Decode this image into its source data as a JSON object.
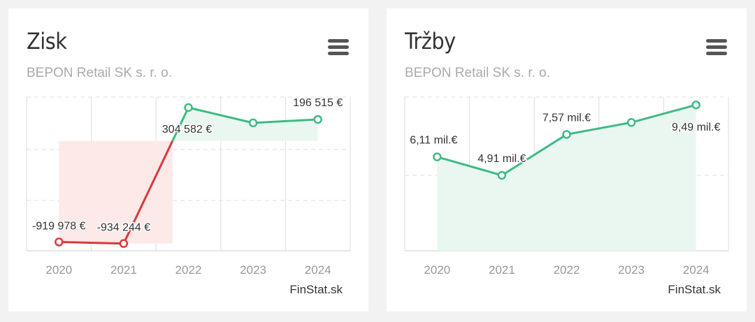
{
  "icons": {
    "menu": "hamburger-menu-icon"
  },
  "colors": {
    "positive": "#3dbb82",
    "negative": "#d63a3a",
    "positive_fill": "#eaf7f1",
    "negative_fill": "#fde9e7",
    "grid": "#dddddd"
  },
  "cards": [
    {
      "title": "Zisk",
      "subtitle": "BEPON Retail SK s. r. o.",
      "credit": "FinStat.sk",
      "chart_data": {
        "type": "line",
        "title": "Zisk",
        "subtitle": "BEPON Retail SK s. r. o.",
        "categories": [
          "2020",
          "2021",
          "2022",
          "2023",
          "2024"
        ],
        "values": [
          -919978,
          -934244,
          304582,
          165000,
          196515
        ],
        "data_labels": [
          "-919 978 €",
          "-934 244 €",
          "304 582 €",
          "",
          "196 515 €"
        ],
        "ylim": [
          -1000000,
          400000
        ],
        "grid": true,
        "legend": "none"
      }
    },
    {
      "title": "Tržby",
      "subtitle": "BEPON Retail SK s. r. o.",
      "credit": "FinStat.sk",
      "chart_data": {
        "type": "line",
        "title": "Tržby",
        "subtitle": "BEPON Retail SK s. r. o.",
        "categories": [
          "2020",
          "2021",
          "2022",
          "2023",
          "2024"
        ],
        "values": [
          6.11,
          4.91,
          7.57,
          8.35,
          9.49
        ],
        "unit": "mil. €",
        "data_labels": [
          "6,11 mil.€",
          "4,91 mil.€",
          "7,57 mil.€",
          "",
          "9,49 mil.€"
        ],
        "ylim": [
          0,
          10
        ],
        "grid": true,
        "legend": "none"
      }
    }
  ]
}
